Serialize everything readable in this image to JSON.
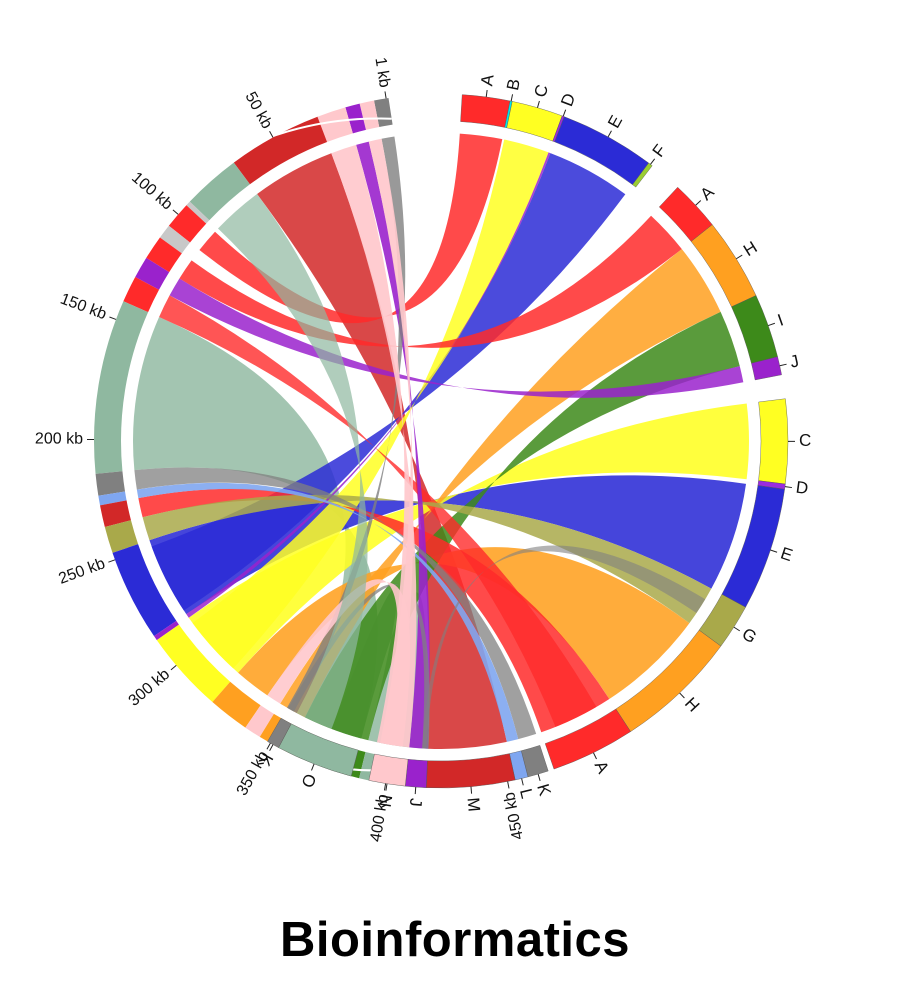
{
  "caption": "Bioinformatics",
  "colors": {
    "A": "#ff2a2a",
    "B": "#00e5ee",
    "C": "#ffff22",
    "D": "#9b2be0",
    "E": "#2b2bd6",
    "F": "#9acd32",
    "G": "#a9a94a",
    "H": "#ffa020",
    "I": "#3d8a1a",
    "J": "#9a22cc",
    "K": "#808080",
    "L": "#7fa6f0",
    "M": "#d22828",
    "N": "#ffc8cc",
    "O": "#8fb8a0",
    "silver": "#c8c8c8"
  },
  "genome": {
    "tick_labels": [
      "1 kb",
      "50 kb",
      "100 kb",
      "150 kb",
      "200 kb",
      "250 kb",
      "300 kb",
      "350 kb",
      "400 kb",
      "450 kb"
    ],
    "tick_values_kb": [
      1,
      50,
      100,
      150,
      200,
      250,
      300,
      350,
      400,
      450
    ],
    "segments": [
      {
        "key": "K",
        "start": 0,
        "end": 6
      },
      {
        "key": "N",
        "start": 6,
        "end": 12
      },
      {
        "key": "J",
        "start": 12,
        "end": 18
      },
      {
        "key": "N",
        "start": 18,
        "end": 30
      },
      {
        "key": "M",
        "start": 30,
        "end": 69
      },
      {
        "key": "O",
        "start": 69,
        "end": 93
      },
      {
        "key": "silver",
        "start": 93,
        "end": 95
      },
      {
        "key": "A",
        "start": 95,
        "end": 106
      },
      {
        "key": "silver",
        "start": 106,
        "end": 112
      },
      {
        "key": "A",
        "start": 112,
        "end": 122
      },
      {
        "key": "J",
        "start": 122,
        "end": 131
      },
      {
        "key": "A",
        "start": 131,
        "end": 142
      },
      {
        "key": "O",
        "start": 142,
        "end": 214
      },
      {
        "key": "K",
        "start": 214,
        "end": 223
      },
      {
        "key": "L",
        "start": 223,
        "end": 227
      },
      {
        "key": "M",
        "start": 227,
        "end": 236
      },
      {
        "key": "G",
        "start": 236,
        "end": 247
      },
      {
        "key": "E",
        "start": 247,
        "end": 285
      },
      {
        "key": "J",
        "start": 285,
        "end": 287
      },
      {
        "key": "C",
        "start": 287,
        "end": 321
      },
      {
        "key": "H",
        "start": 321,
        "end": 338
      },
      {
        "key": "N",
        "start": 338,
        "end": 345
      },
      {
        "key": "H",
        "start": 345,
        "end": 358
      },
      {
        "key": "I",
        "start": 358,
        "end": 389
      },
      {
        "key": "O",
        "start": 389,
        "end": 414
      },
      {
        "key": "K",
        "start": 414,
        "end": 417
      }
    ]
  },
  "groups": [
    {
      "segments": [
        {
          "label": "A",
          "key": "A",
          "size": 13
        },
        {
          "label": "B",
          "key": "B",
          "size": 0.6
        },
        {
          "label": "C",
          "key": "C",
          "size": 14
        },
        {
          "label": "D",
          "key": "D",
          "size": 0.6
        },
        {
          "label": "E",
          "key": "E",
          "size": 26
        },
        {
          "label": "F",
          "key": "F",
          "size": 1.2
        }
      ]
    },
    {
      "segments": [
        {
          "label": "A",
          "key": "A",
          "size": 11
        },
        {
          "label": "H",
          "key": "H",
          "size": 18
        },
        {
          "label": "I",
          "key": "I",
          "size": 14
        },
        {
          "label": "J",
          "key": "J",
          "size": 4
        }
      ]
    },
    {
      "segments": [
        {
          "label": "C",
          "key": "C",
          "size": 13
        },
        {
          "label": "D",
          "key": "D",
          "size": 0.8
        },
        {
          "label": "E",
          "key": "E",
          "size": 19
        },
        {
          "label": "G",
          "key": "G",
          "size": 7
        },
        {
          "label": "H",
          "key": "H",
          "size": 19
        },
        {
          "label": "A",
          "key": "A",
          "size": 13
        }
      ]
    },
    {
      "segments": [
        {
          "label": "K",
          "key": "K",
          "size": 4
        },
        {
          "label": "L",
          "key": "L",
          "size": 2.5
        },
        {
          "label": "M",
          "key": "M",
          "size": 17
        },
        {
          "label": "J",
          "key": "J",
          "size": 4
        },
        {
          "label": "N",
          "key": "N",
          "size": 7
        }
      ]
    },
    {
      "segments": [
        {
          "label": "O",
          "key": "O",
          "size": 31
        },
        {
          "label": "K",
          "key": "K",
          "size": 5
        }
      ]
    }
  ]
}
